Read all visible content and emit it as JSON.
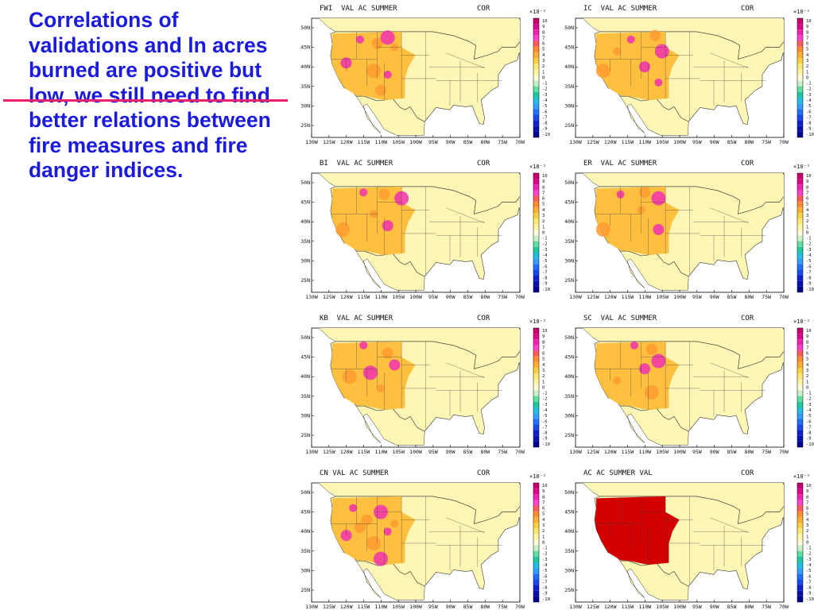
{
  "slide_text": "Correlations of validations and ln acres burned are positive but low, we still need to find better relations between fire measures and fire danger indices.",
  "panels": [
    {
      "title": "FWI  VAL AC SUMMER",
      "stat": "COR"
    },
    {
      "title": "IC  VAL AC SUMMER",
      "stat": "COR"
    },
    {
      "title": "BI  VAL AC SUMMER",
      "stat": "COR"
    },
    {
      "title": "ER  VAL AC SUMMER",
      "stat": "COR"
    },
    {
      "title": "KB  VAL AC SUMMER",
      "stat": "COR"
    },
    {
      "title": "SC  VAL AC SUMMER",
      "stat": "COR"
    },
    {
      "title": "CN VAL AC SUMMER",
      "stat": "COR"
    },
    {
      "title": "AC AC SUMMER VAL",
      "stat": "COR"
    }
  ],
  "map_axes": {
    "lat_labels": [
      "50N",
      "45N",
      "40N",
      "35N",
      "30N",
      "25N"
    ],
    "lon_labels": [
      "130W",
      "125W",
      "120W",
      "115W",
      "110W",
      "105W",
      "100W",
      "95W",
      "90W",
      "85W",
      "80W",
      "75W",
      "70W"
    ],
    "colorbar_scale": "×10⁻¹",
    "colorbar_labels": [
      "10",
      "9",
      "8",
      "7",
      "6",
      "5",
      "4",
      "3",
      "2",
      "1",
      "0",
      "-1",
      "-2",
      "-3",
      "-4",
      "-5",
      "-6",
      "-7",
      "-8",
      "-9",
      "-10"
    ]
  }
}
